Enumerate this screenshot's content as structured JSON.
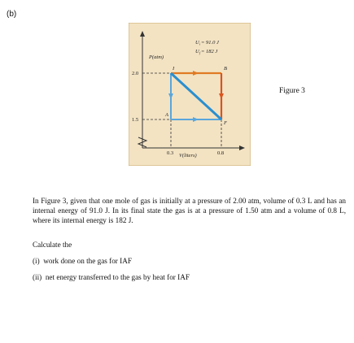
{
  "part_label": "(b)",
  "figure": {
    "y_axis_label": "P(atm)",
    "x_axis_label": "V(liters)",
    "energy_initial": {
      "symbol": "U",
      "sub": "i",
      "rest": "= 91.0 J"
    },
    "energy_final": {
      "symbol": "U",
      "sub": "f",
      "rest": "= 182 J"
    },
    "y_ticks": [
      "2.0",
      "1.5"
    ],
    "x_ticks": [
      "0.3",
      "0.8"
    ],
    "points": [
      "I",
      "B",
      "A",
      "F"
    ],
    "caption": "Figure 3"
  },
  "problem": {
    "text": "In Figure 3, given that one mole of gas is initially at a pressure of 2.00 atm, volume of 0.3 L and has an internal energy of 91.0 J. In its final state the gas is at a pressure of 1.50 atm and a volume of 0.8 L, where its internal energy is 182 J.",
    "prompt": "Calculate the",
    "questions": [
      "(i)  work done on the gas for IAF",
      "(ii)  net energy transferred to the gas by heat for IAF"
    ]
  }
}
